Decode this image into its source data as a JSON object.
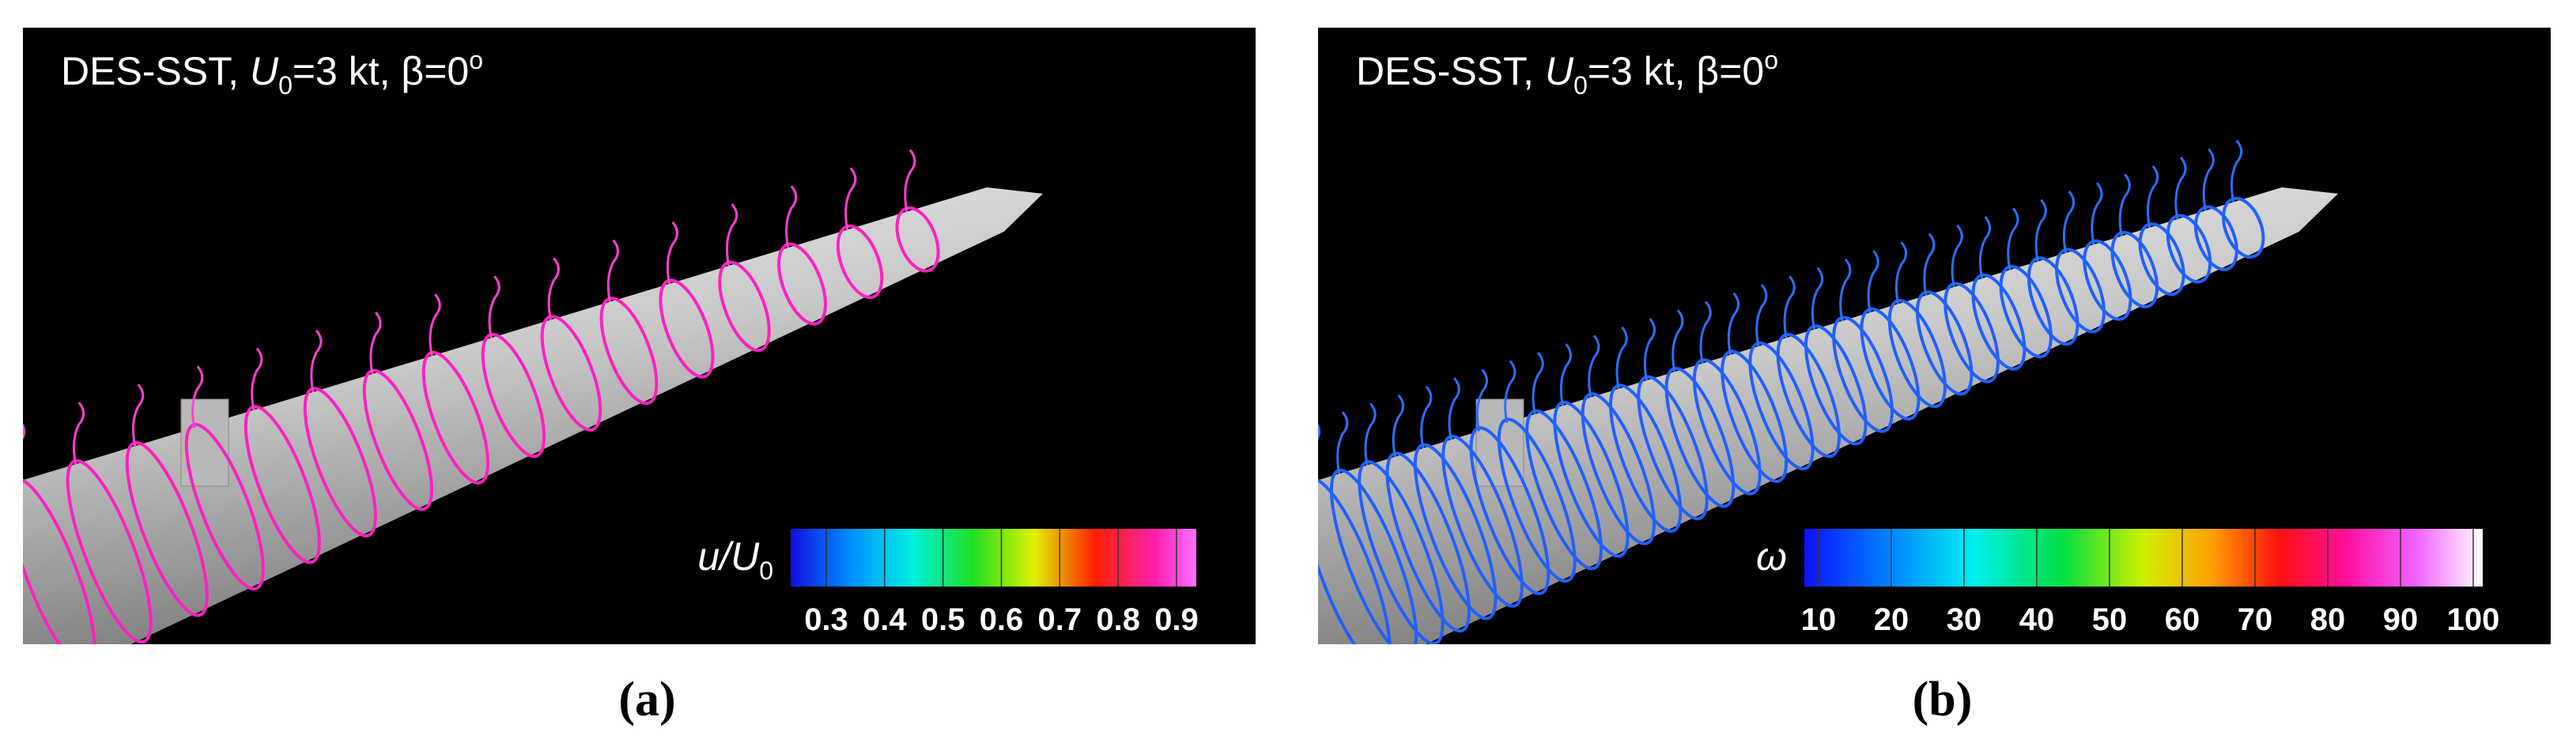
{
  "panels": [
    {
      "label": "(a)",
      "title": {
        "prefix": "DES-SST, ",
        "var": "U",
        "sub": "0",
        "mid": "=3 kt, β=0",
        "sup": "o"
      },
      "colorbar": {
        "label": {
          "var": "u/U",
          "sub": "0"
        },
        "ticks": [
          "0.3",
          "0.4",
          "0.5",
          "0.6",
          "0.7",
          "0.8",
          "0.9"
        ]
      }
    },
    {
      "label": "(b)",
      "title": {
        "prefix": "DES-SST, ",
        "var": "U",
        "sub": "0",
        "mid": "=3 kt, β=0",
        "sup": "o"
      },
      "colorbar": {
        "label": {
          "var": "ω"
        },
        "ticks": [
          "10",
          "20",
          "30",
          "40",
          "50",
          "60",
          "70",
          "80",
          "90",
          "100"
        ]
      }
    }
  ]
}
